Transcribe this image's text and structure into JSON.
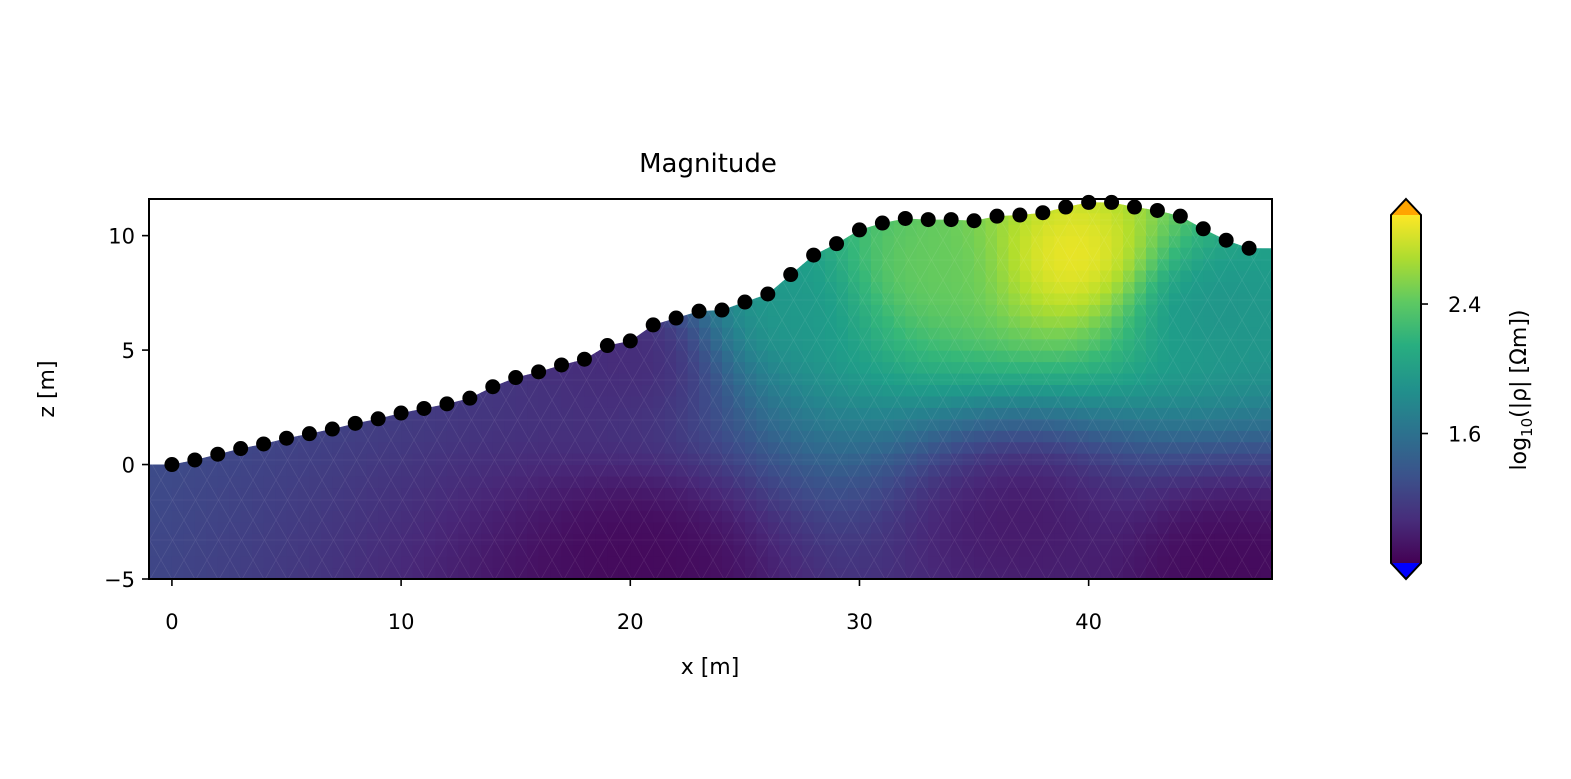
{
  "chart_data": {
    "type": "heatmap",
    "title": "Magnitude",
    "xlabel": "x [m]",
    "ylabel": "z [m]",
    "xlim": [
      -1,
      48
    ],
    "ylim": [
      -5,
      11.6
    ],
    "x_ticks": [
      0,
      10,
      20,
      30,
      40
    ],
    "x_tick_labels": [
      "0",
      "10",
      "20",
      "30",
      "40"
    ],
    "y_ticks": [
      -5,
      0,
      5,
      10
    ],
    "y_tick_labels": [
      "−5",
      "0",
      "5",
      "10"
    ],
    "colorbar": {
      "label_prefix": "log",
      "label_sub": "10",
      "label_suffix": "(|ρ| [Ωm])",
      "range": [
        0.8,
        2.95
      ],
      "ticks": [
        1.6,
        2.4
      ],
      "tick_labels": [
        "1.6",
        "2.4"
      ],
      "extend": "both",
      "colormap": "viridis",
      "under_color": "#0000ff",
      "over_color": "#ffa500"
    },
    "electrodes": {
      "x": [
        0,
        1,
        2,
        3,
        4,
        5,
        6,
        7,
        8,
        9,
        10,
        11,
        12,
        13,
        14,
        15,
        16,
        17,
        18,
        19,
        20,
        21,
        22,
        23,
        24,
        25,
        26,
        27,
        28,
        29,
        30,
        31,
        32,
        33,
        34,
        35,
        36,
        37,
        38,
        39,
        40,
        41,
        42,
        43,
        44,
        45,
        46,
        47
      ],
      "z": [
        0,
        0.2,
        0.45,
        0.7,
        0.9,
        1.15,
        1.35,
        1.55,
        1.8,
        2.0,
        2.25,
        2.45,
        2.65,
        2.9,
        3.4,
        3.8,
        4.05,
        4.35,
        4.6,
        5.2,
        5.4,
        6.1,
        6.4,
        6.7,
        6.75,
        7.1,
        7.45,
        8.3,
        9.15,
        9.65,
        10.25,
        10.55,
        10.75,
        10.7,
        10.7,
        10.65,
        10.85,
        10.9,
        11.0,
        11.25,
        11.45,
        11.45,
        11.25,
        11.1,
        10.85,
        10.3,
        9.8,
        9.45
      ]
    },
    "surface": {
      "x": [
        -1,
        48
      ],
      "z": [
        0,
        9.45
      ]
    },
    "model_anomalies": [
      {
        "x": 39.5,
        "z": 9.0,
        "log_rho": 2.95
      },
      {
        "x": 33,
        "z": 8.5,
        "log_rho": 2.45
      },
      {
        "x": 27,
        "z": 7.0,
        "log_rho": 1.95
      },
      {
        "x": 45,
        "z": 7.0,
        "log_rho": 1.9
      },
      {
        "x": 20,
        "z": 4.7,
        "log_rho": 1.05
      },
      {
        "x": 20.5,
        "z": -4.3,
        "log_rho": 0.85
      },
      {
        "x": 37,
        "z": -2.5,
        "log_rho": 0.95
      },
      {
        "x": 46,
        "z": -4.5,
        "log_rho": 0.85
      }
    ]
  }
}
